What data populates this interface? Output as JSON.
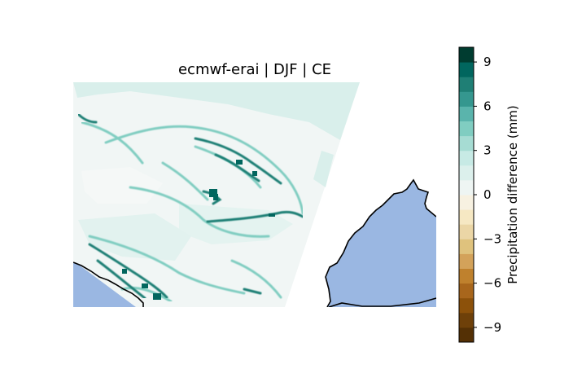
{
  "title": "ecmwf-erai | DJF | CE",
  "colorbar": {
    "label": "Precipitation difference (mm)",
    "range": [
      -10,
      10
    ],
    "step": 1,
    "ticks": [
      {
        "value": 9,
        "label": "9"
      },
      {
        "value": 6,
        "label": "6"
      },
      {
        "value": 3,
        "label": "3"
      },
      {
        "value": 0,
        "label": "0"
      },
      {
        "value": -3,
        "label": "−3"
      },
      {
        "value": -6,
        "label": "−6"
      },
      {
        "value": -9,
        "label": "−9"
      }
    ],
    "colors": [
      "#543005",
      "#6e4009",
      "#8c510a",
      "#a8661c",
      "#bf812d",
      "#d3a25a",
      "#dfc27d",
      "#ebd6a6",
      "#f6e8c3",
      "#f7f1e1",
      "#eef5f3",
      "#dcf0ec",
      "#c7eae5",
      "#a6dcd3",
      "#80cdc1",
      "#5ab4ac",
      "#35978f",
      "#1f7f75",
      "#01665e",
      "#003c30"
    ]
  },
  "map": {
    "ocean_color": "#9ab7e2",
    "coastline_color": "#000000"
  }
}
